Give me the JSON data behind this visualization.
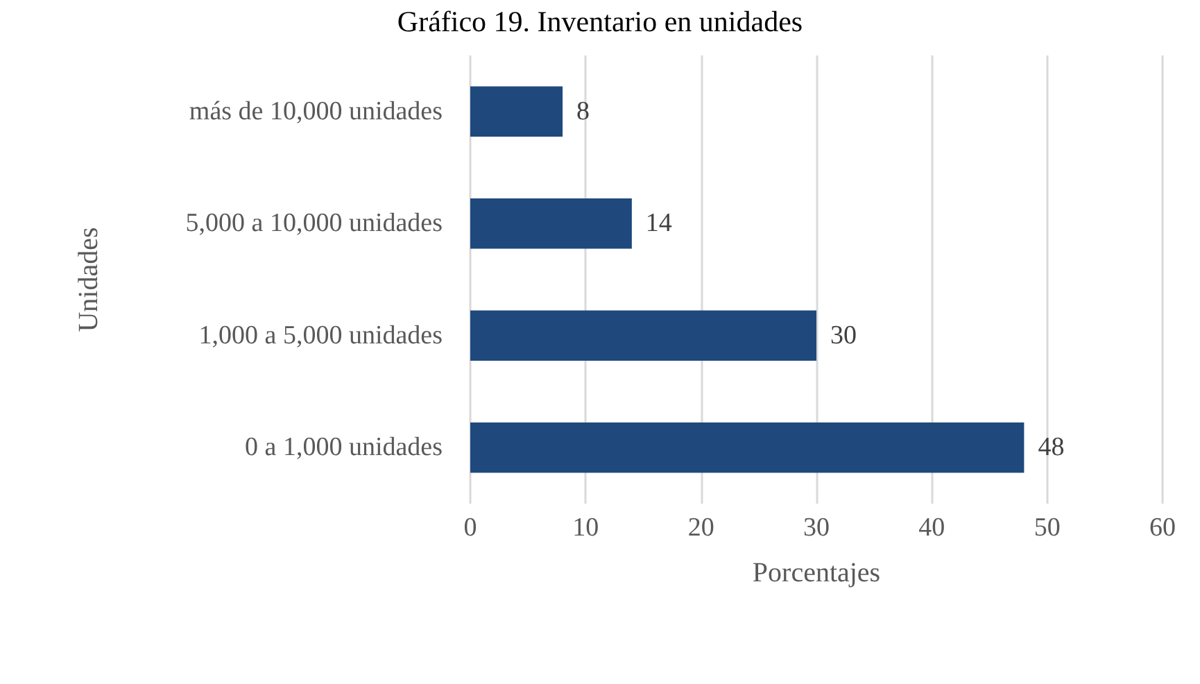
{
  "chart_data": {
    "type": "bar",
    "orientation": "horizontal",
    "title": "Gráfico 19. Inventario en unidades",
    "xlabel": "Porcentajes",
    "ylabel": "Unidades",
    "categories": [
      "más de 10,000 unidades",
      "5,000 a 10,000 unidades",
      "1,000 a 5,000 unidades",
      "0 a 1,000 unidades"
    ],
    "values": [
      8,
      14,
      30,
      48
    ],
    "color": "#1f497d",
    "data_labels": true,
    "xlim": [
      0,
      60
    ],
    "xticks": [
      0,
      10,
      20,
      30,
      40,
      50,
      60
    ],
    "grid": "x"
  }
}
